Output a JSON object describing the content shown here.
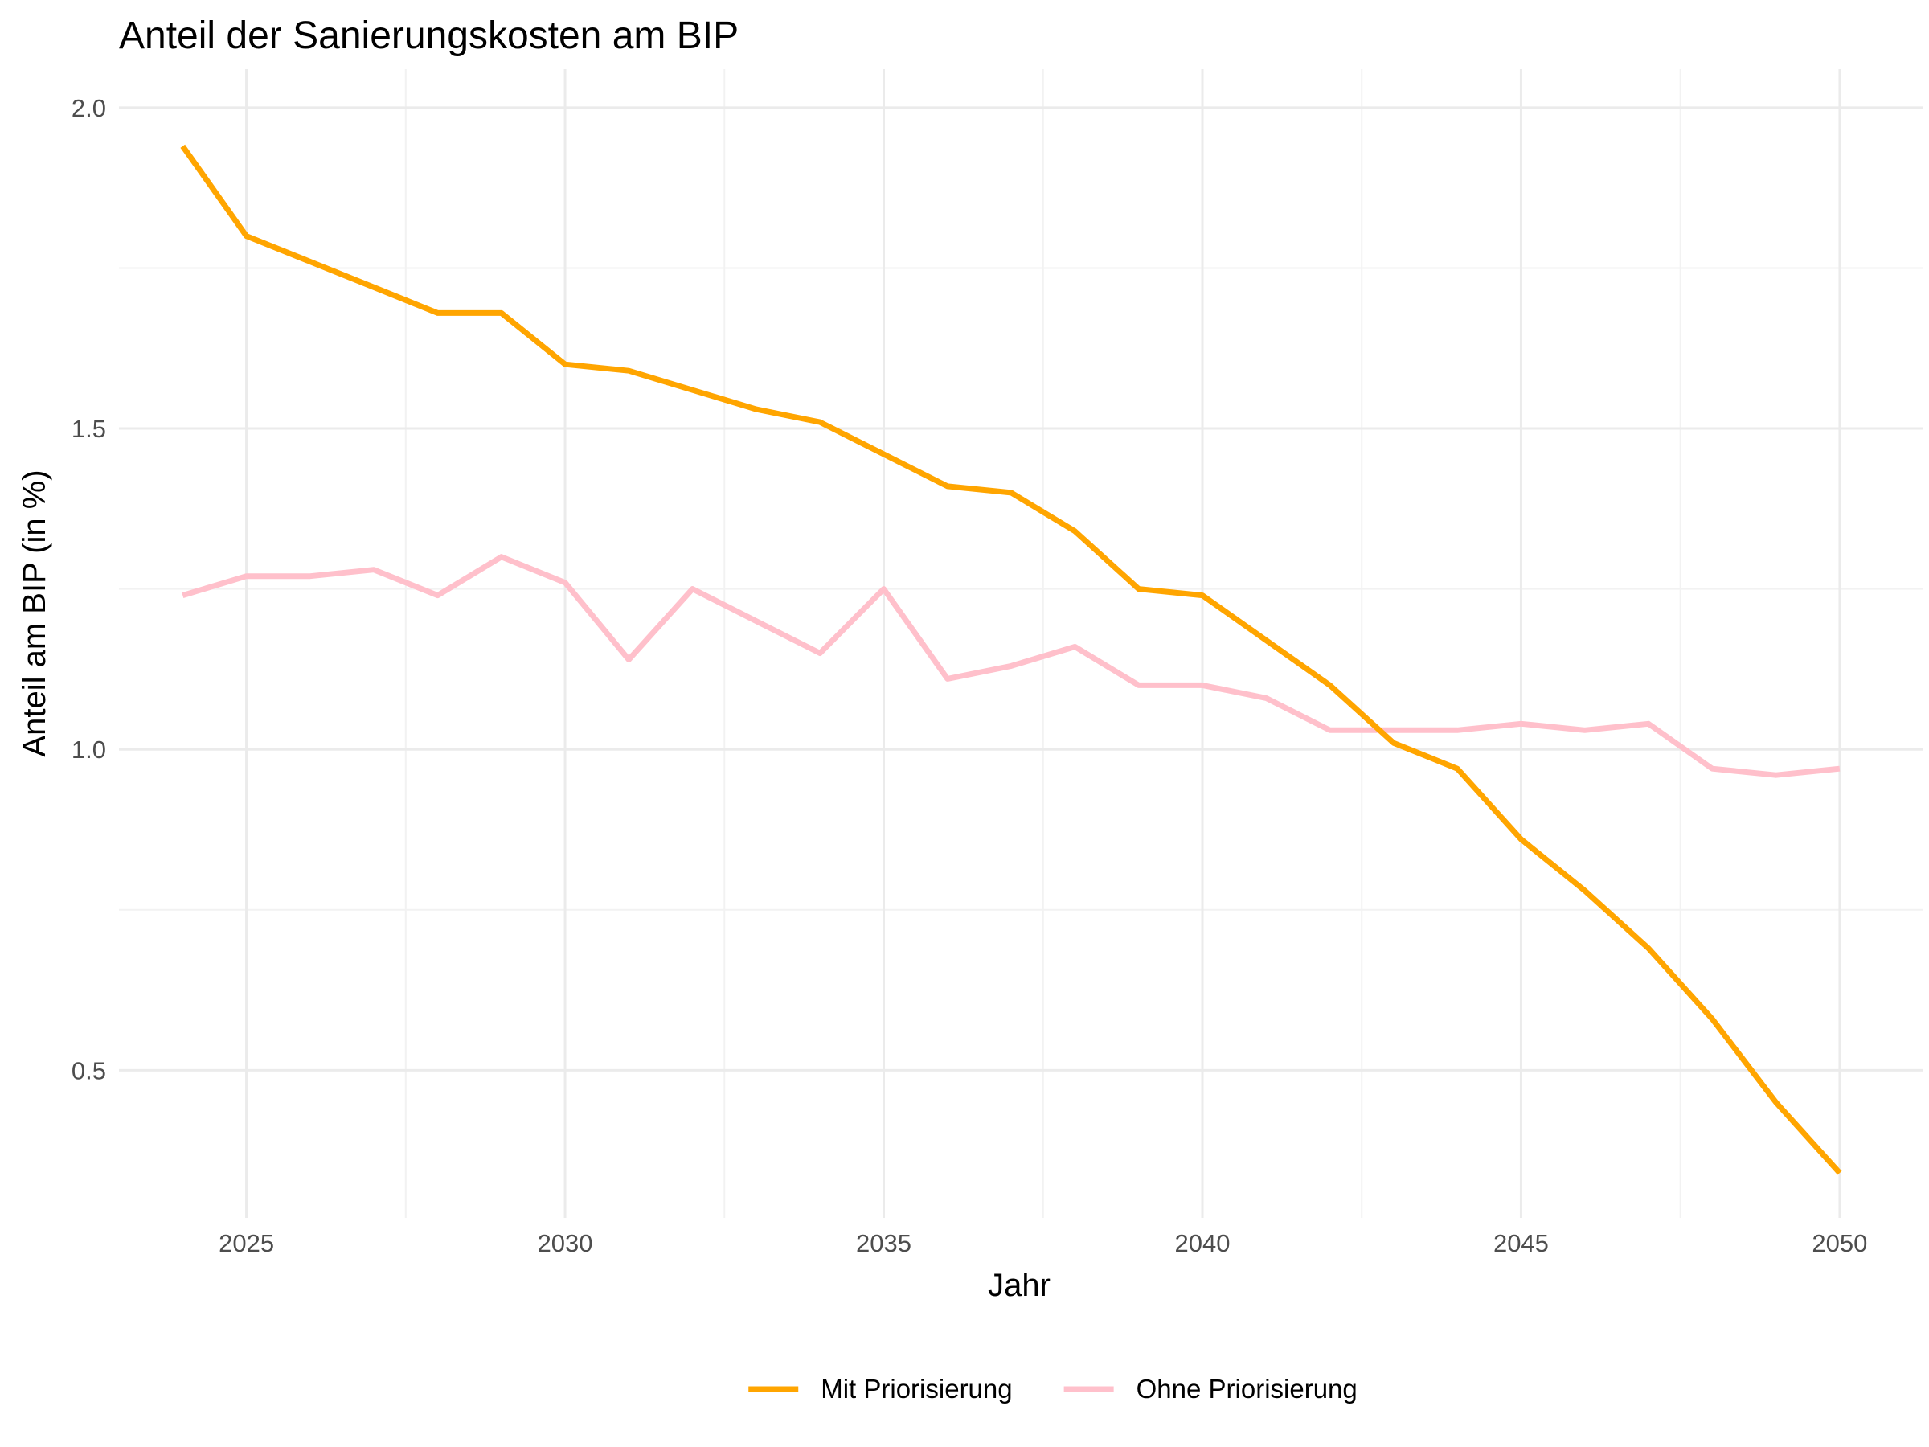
{
  "chart_data": {
    "type": "line",
    "title": "Anteil der Sanierungskosten am BIP",
    "xlabel": "Jahr",
    "ylabel": "Anteil am BIP (in %)",
    "x": [
      2024,
      2025,
      2026,
      2027,
      2028,
      2029,
      2030,
      2031,
      2032,
      2033,
      2034,
      2035,
      2036,
      2037,
      2038,
      2039,
      2040,
      2041,
      2042,
      2043,
      2044,
      2045,
      2046,
      2047,
      2048,
      2049,
      2050
    ],
    "xlim": [
      2023.0,
      2051.3
    ],
    "ylim": [
      0.27,
      2.06
    ],
    "xticks": [
      2025,
      2030,
      2035,
      2040,
      2045,
      2050
    ],
    "xtick_labels": [
      "2025",
      "2030",
      "2035",
      "2040",
      "2045",
      "2050"
    ],
    "yticks": [
      0.5,
      1.0,
      1.5,
      2.0
    ],
    "ytick_labels": [
      "0.5",
      "1.0",
      "1.5",
      "2.0"
    ],
    "grid": true,
    "legend_position": "bottom",
    "series": [
      {
        "name": "Mit Priorisierung",
        "color": "#FFA500",
        "values": [
          1.94,
          1.8,
          1.76,
          1.72,
          1.68,
          1.68,
          1.6,
          1.59,
          1.56,
          1.53,
          1.51,
          1.46,
          1.41,
          1.4,
          1.34,
          1.25,
          1.24,
          1.17,
          1.1,
          1.01,
          0.97,
          0.86,
          0.78,
          0.69,
          0.58,
          0.45,
          0.34
        ]
      },
      {
        "name": "Ohne Priorisierung",
        "color": "#FFC0CB",
        "values": [
          1.24,
          1.27,
          1.27,
          1.28,
          1.24,
          1.3,
          1.26,
          1.14,
          1.25,
          1.2,
          1.15,
          1.25,
          1.11,
          1.13,
          1.16,
          1.1,
          1.1,
          1.08,
          1.03,
          1.03,
          1.03,
          1.04,
          1.03,
          1.04,
          0.97,
          0.96,
          0.97
        ]
      }
    ]
  }
}
